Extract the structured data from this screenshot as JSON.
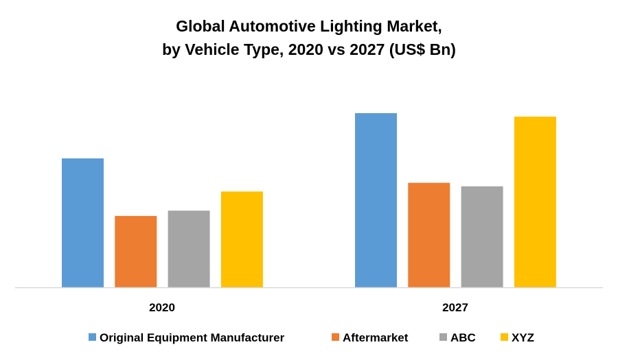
{
  "chart_data": {
    "type": "bar",
    "title": [
      "Global Automotive Lighting Market,",
      "by Vehicle Type, 2020 vs 2027 (US$ Bn)"
    ],
    "xlabel": "",
    "ylabel": "",
    "categories": [
      "2020",
      "2027"
    ],
    "series": [
      {
        "name": "Original Equipment Manufacturer",
        "color": "#5B9BD5",
        "values": [
          74,
          100
        ]
      },
      {
        "name": "Aftermarket",
        "color": "#ED7D31",
        "values": [
          41,
          60
        ]
      },
      {
        "name": "ABC",
        "color": "#A5A5A5",
        "values": [
          44,
          58
        ]
      },
      {
        "name": "XYZ",
        "color": "#FFC000",
        "values": [
          55,
          98
        ]
      }
    ],
    "value_note": "No y-axis shown; values are estimated relative heights (largest bar = 100)",
    "ylim": [
      0,
      100
    ],
    "grid": false,
    "legend_position": "bottom",
    "data_labels": false
  }
}
